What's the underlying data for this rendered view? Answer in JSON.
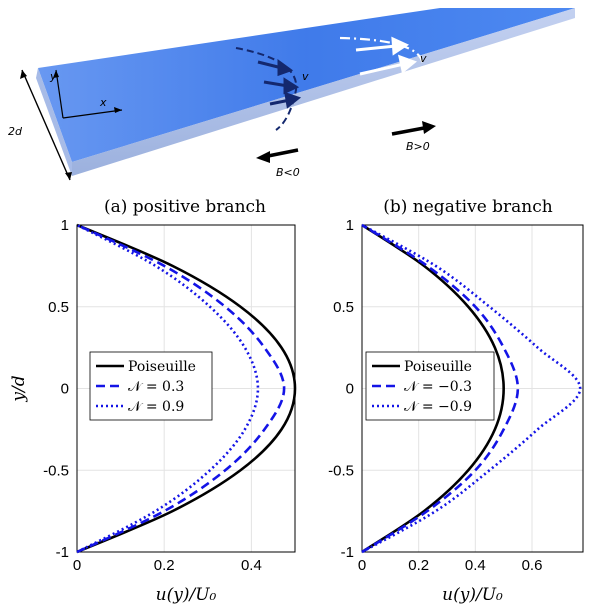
{
  "figure": {
    "diagram": {
      "labels": {
        "y": "y",
        "x": "x",
        "thickness": "2d",
        "v_left": "v",
        "v_right": "v",
        "b_pos": "B>0",
        "b_neg": "B<0"
      },
      "colors": {
        "slab": "#2e6ee6",
        "dark_arrows": "#14286e",
        "light_arrows": "#ffffff"
      }
    },
    "panel_a": {
      "title": "(a) positive branch"
    },
    "panel_b": {
      "title": "(b) negative branch"
    }
  },
  "chart_data": [
    {
      "type": "line",
      "title": "(a) positive branch",
      "xlabel": "u(y)/U₀",
      "ylabel": "y/d",
      "xlim": [
        0,
        0.5
      ],
      "ylim": [
        -1,
        1
      ],
      "xticks": [
        "0",
        "0.2",
        "0.4"
      ],
      "yticks": [
        "1",
        "0.5",
        "0",
        "-0.5",
        "-1"
      ],
      "grid": true,
      "legend": "center-left",
      "series": [
        {
          "name": "Poiseuille",
          "color": "#000000",
          "style": "solid",
          "y": [
            -1,
            -0.75,
            -0.5,
            -0.25,
            0,
            0.25,
            0.5,
            0.75,
            1
          ],
          "x": [
            0,
            0.219,
            0.375,
            0.469,
            0.5,
            0.469,
            0.375,
            0.219,
            0
          ]
        },
        {
          "name": "𝒩 = 0.3",
          "color": "#1414e6",
          "style": "dashed",
          "y": [
            -1,
            -0.75,
            -0.5,
            -0.25,
            0,
            0.25,
            0.5,
            0.75,
            1
          ],
          "x": [
            0,
            0.2,
            0.34,
            0.43,
            0.475,
            0.43,
            0.34,
            0.2,
            0
          ]
        },
        {
          "name": "𝒩 = 0.9",
          "color": "#1414e6",
          "style": "dotted",
          "y": [
            -1,
            -0.75,
            -0.5,
            -0.25,
            0,
            0.25,
            0.5,
            0.75,
            1
          ],
          "x": [
            0,
            0.18,
            0.305,
            0.385,
            0.415,
            0.385,
            0.305,
            0.18,
            0
          ]
        }
      ]
    },
    {
      "type": "line",
      "title": "(b) negative branch",
      "xlabel": "u(y)/U₀",
      "ylabel": "",
      "xlim": [
        0,
        0.78
      ],
      "ylim": [
        -1,
        1
      ],
      "xticks": [
        "0",
        "0.2",
        "0.4",
        "0.6"
      ],
      "yticks": [
        "1",
        "0.5",
        "0",
        "-0.5",
        "-1"
      ],
      "grid": true,
      "legend": "center-left",
      "series": [
        {
          "name": "Poiseuille",
          "color": "#000000",
          "style": "solid",
          "y": [
            -1,
            -0.75,
            -0.5,
            -0.25,
            0,
            0.25,
            0.5,
            0.75,
            1
          ],
          "x": [
            0,
            0.219,
            0.375,
            0.469,
            0.5,
            0.469,
            0.375,
            0.219,
            0
          ]
        },
        {
          "name": "𝒩 = −0.3",
          "color": "#1414e6",
          "style": "dashed",
          "y": [
            -1,
            -0.75,
            -0.5,
            -0.25,
            0,
            0.25,
            0.5,
            0.75,
            1
          ],
          "x": [
            0,
            0.23,
            0.4,
            0.5,
            0.55,
            0.5,
            0.4,
            0.23,
            0
          ]
        },
        {
          "name": "𝒩 = −0.9",
          "color": "#1414e6",
          "style": "dotted",
          "y": [
            -1,
            -0.75,
            -0.5,
            -0.25,
            0,
            0.25,
            0.5,
            0.75,
            1
          ],
          "x": [
            0,
            0.26,
            0.45,
            0.62,
            0.77,
            0.62,
            0.45,
            0.26,
            0
          ]
        }
      ]
    }
  ]
}
